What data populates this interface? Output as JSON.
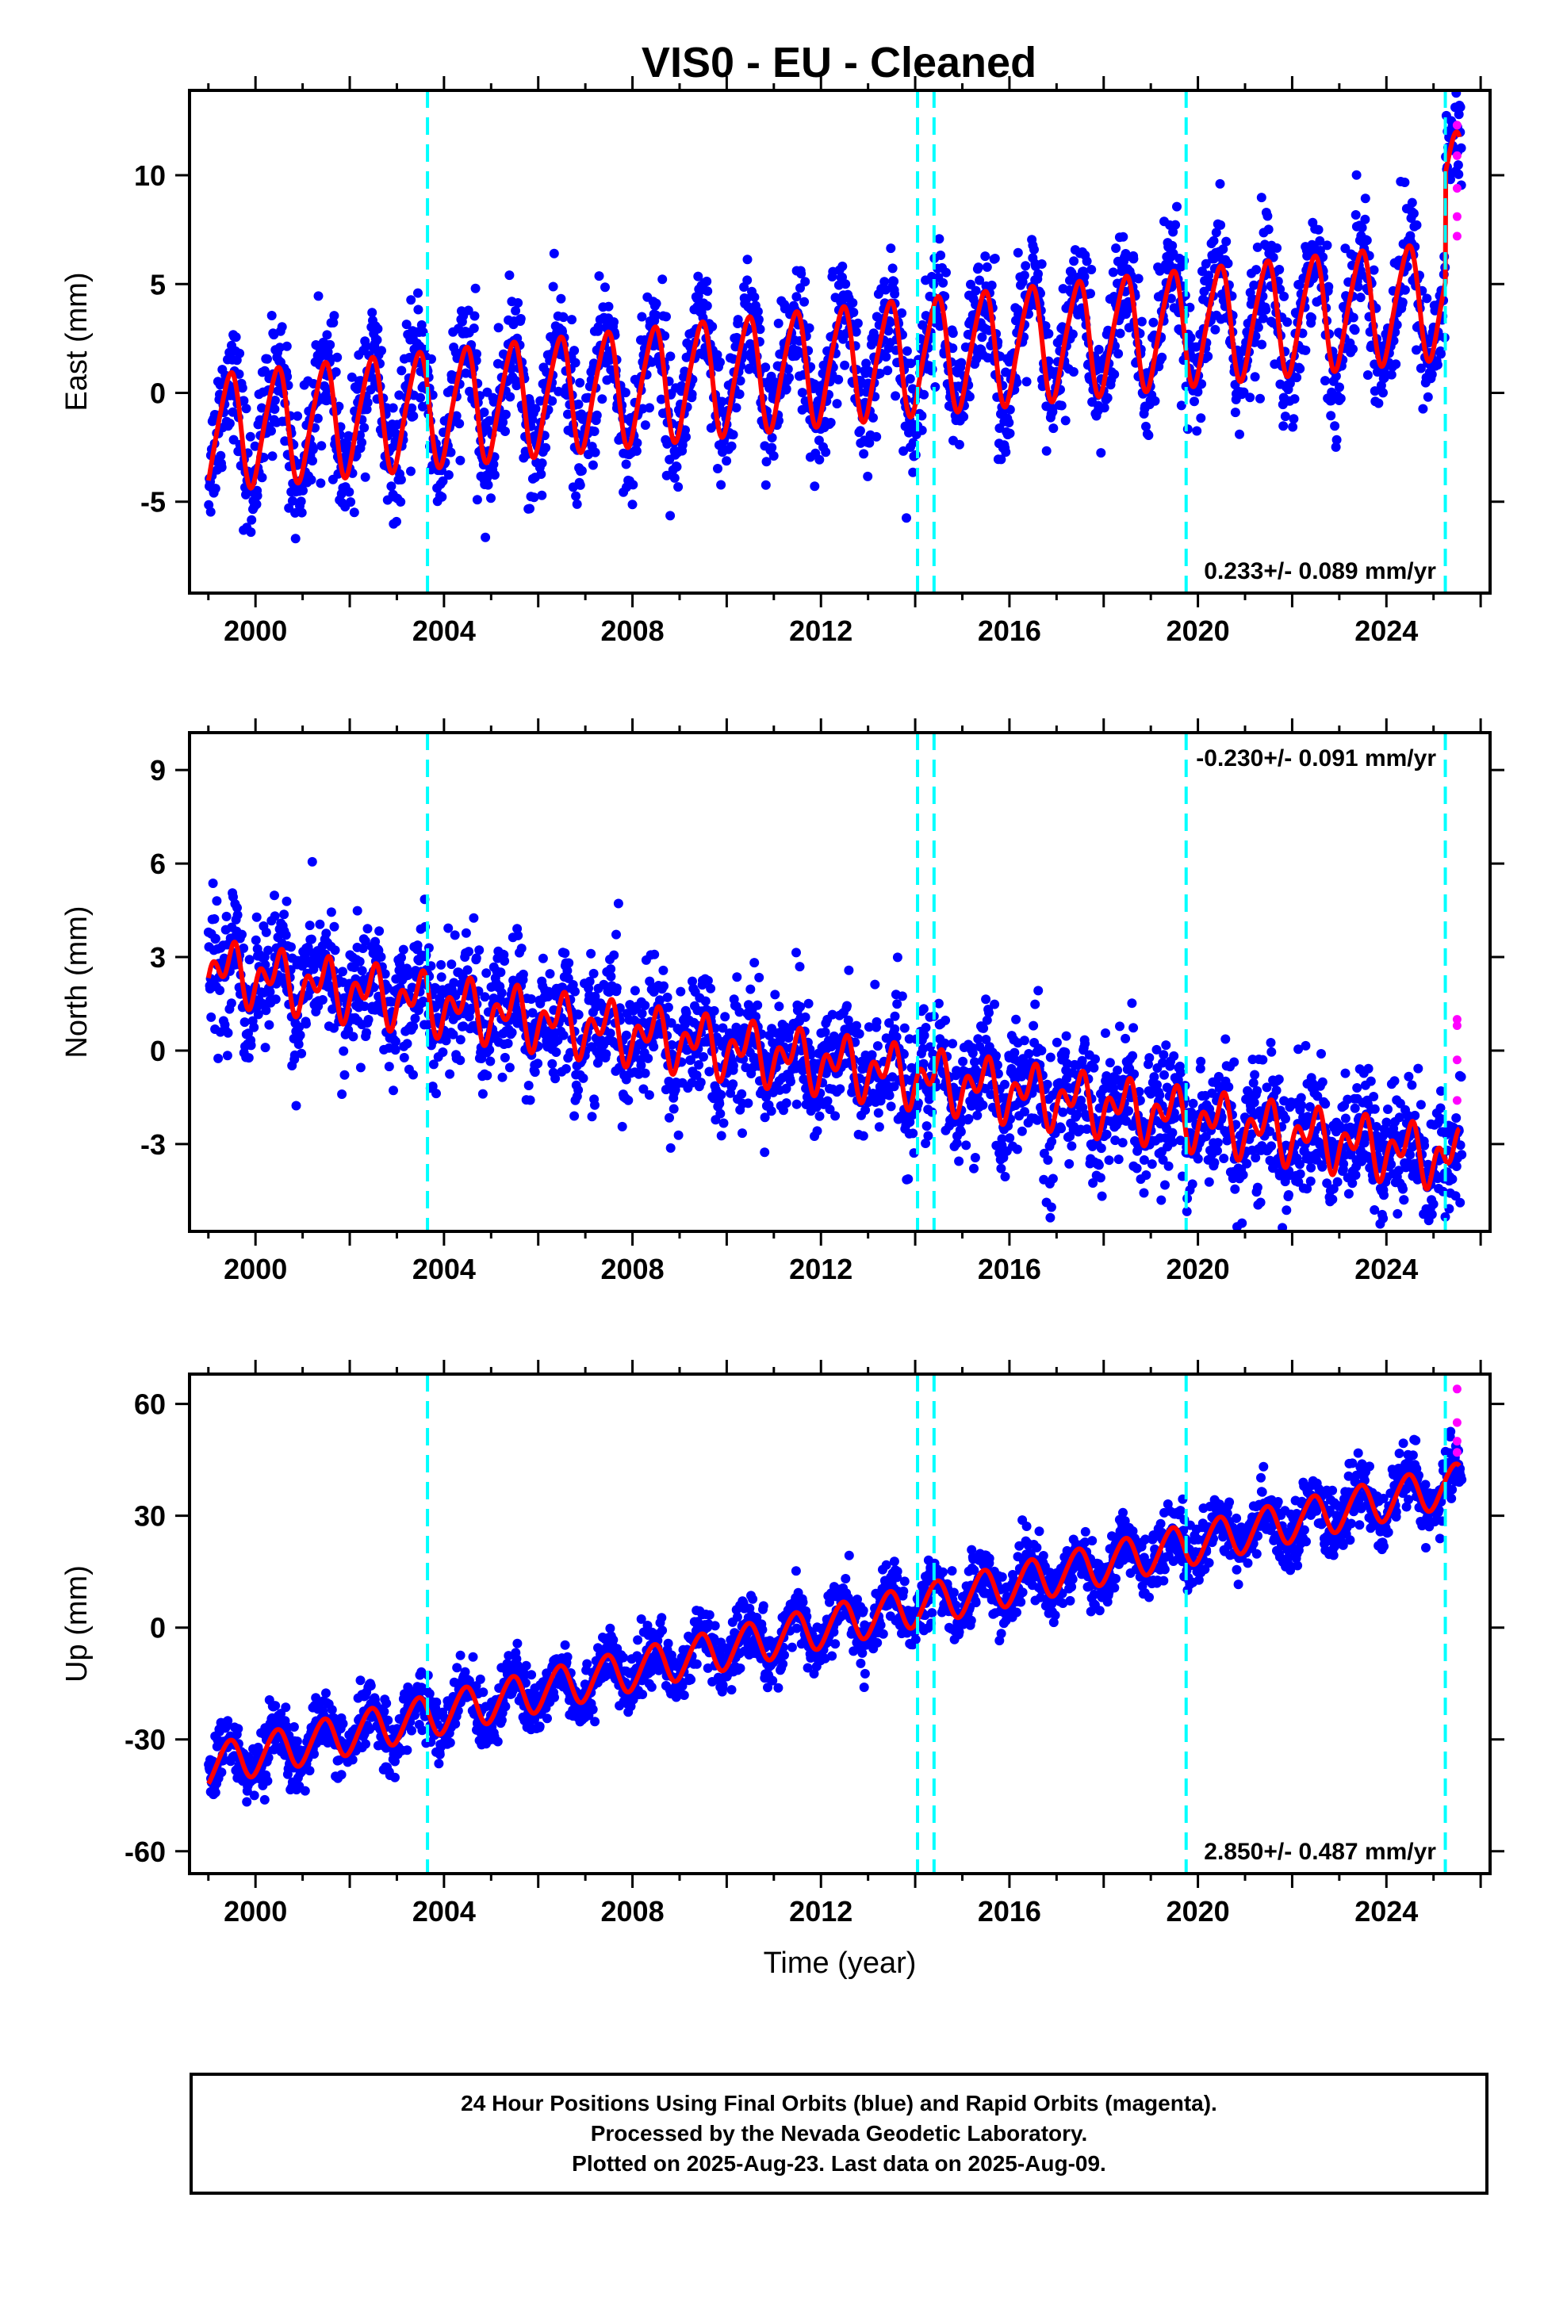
{
  "title": "VIS0  - EU - Cleaned",
  "colors": {
    "final_orbits": "#0000ff",
    "rapid_orbits": "#ff00ff",
    "model_fit": "#ff0000",
    "equipment_changes": "#00ffff",
    "axes": "#000000"
  },
  "equipment_change_years": [
    2003.65,
    2014.05,
    2014.4,
    2019.75,
    2025.25
  ],
  "chart_data": [
    {
      "type": "scatter",
      "ylabel": "East (mm)",
      "xlabel": "",
      "xlim": [
        1998.6,
        2026.2
      ],
      "ylim": [
        -9.2,
        13.9
      ],
      "x_ticks": [
        2000,
        2004,
        2008,
        2012,
        2016,
        2020,
        2024
      ],
      "y_ticks": [
        -5,
        0,
        5,
        10
      ],
      "rate_label": "0.233+/- 0.089 mm/yr",
      "rate_position": "bottom-right",
      "model": {
        "intercept_at_1999": -1.8,
        "trend_mm_per_yr": 0.233,
        "annual_amplitude": 2.6,
        "semiannual_amplitude": 0.4,
        "step_at_2025_25": 5.0
      },
      "scatter_sigma": 1.6,
      "rapid_points": [
        [
          2025.5,
          12.3
        ],
        [
          2025.5,
          10.9
        ],
        [
          2025.5,
          8.1
        ],
        [
          2025.5,
          7.2
        ],
        [
          2025.5,
          9.4
        ]
      ]
    },
    {
      "type": "scatter",
      "ylabel": "North (mm)",
      "xlabel": "",
      "xlim": [
        1998.6,
        2026.2
      ],
      "ylim": [
        -5.8,
        10.2
      ],
      "x_ticks": [
        2000,
        2004,
        2008,
        2012,
        2016,
        2020,
        2024
      ],
      "y_ticks": [
        -3,
        0,
        3,
        6,
        9
      ],
      "rate_label": "-0.230+/- 0.091 mm/yr",
      "rate_position": "top-right",
      "model": {
        "intercept_at_1999": 2.6,
        "trend_mm_per_yr": -0.23,
        "annual_amplitude": 0.6,
        "semiannual_amplitude": 0.6,
        "step_at_2025_25": 0
      },
      "scatter_sigma": 1.1,
      "rapid_points": [
        [
          2025.5,
          0.8
        ],
        [
          2025.5,
          -0.3
        ],
        [
          2025.5,
          -1.6
        ],
        [
          2025.5,
          1.0
        ]
      ]
    },
    {
      "type": "scatter",
      "ylabel": "Up (mm)",
      "xlabel": "Time (year)",
      "xlim": [
        1998.6,
        2026.2
      ],
      "ylim": [
        -66,
        68
      ],
      "x_ticks": [
        2000,
        2004,
        2008,
        2012,
        2016,
        2020,
        2024
      ],
      "y_ticks": [
        -60,
        -30,
        0,
        30,
        60
      ],
      "rate_label": "2.850+/- 0.487 mm/yr",
      "rate_position": "bottom-right",
      "model": {
        "intercept_at_1999": -37,
        "trend_mm_per_yr": 2.85,
        "annual_amplitude": 5.5,
        "semiannual_amplitude": 0.5,
        "step_at_2025_25": 0
      },
      "scatter_sigma": 4.5,
      "rapid_points": [
        [
          2025.5,
          64
        ],
        [
          2025.5,
          55
        ],
        [
          2025.5,
          50
        ],
        [
          2025.5,
          47
        ]
      ]
    }
  ],
  "footer": {
    "line1": "24 Hour Positions Using Final Orbits (blue) and Rapid Orbits (magenta).",
    "line2": "Processed by the Nevada Geodetic Laboratory.",
    "line3": "Plotted on 2025-Aug-23. Last data on 2025-Aug-09."
  }
}
